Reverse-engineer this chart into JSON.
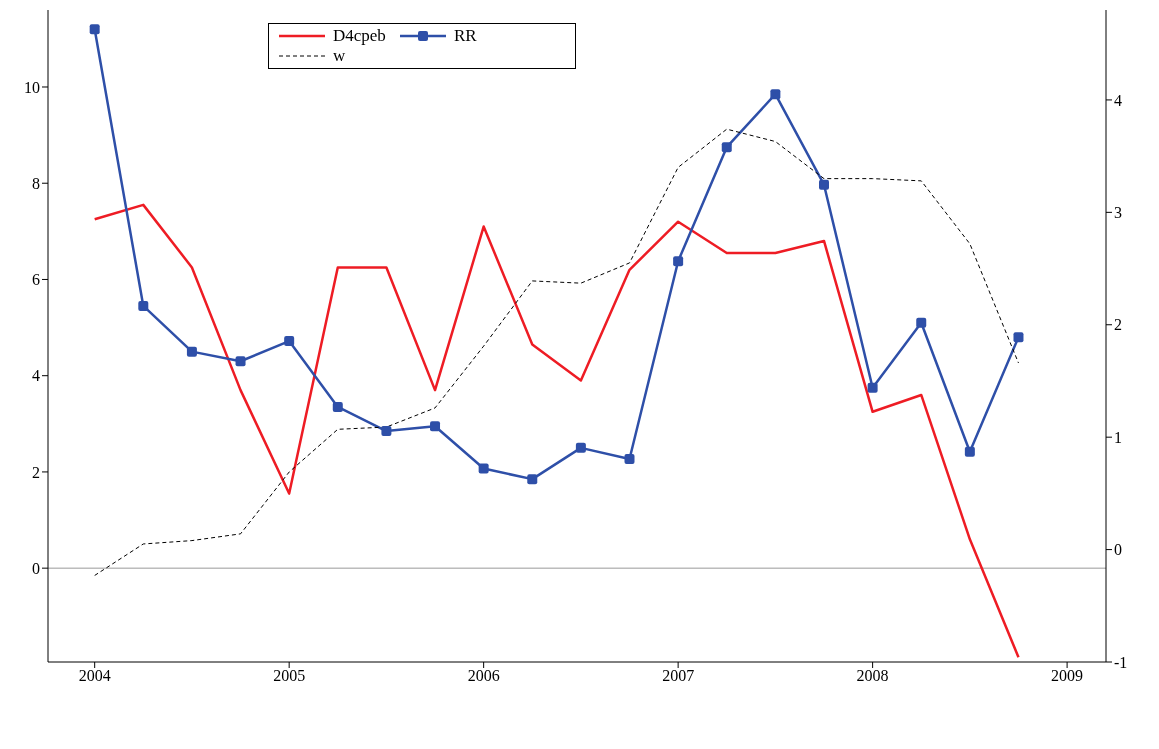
{
  "chart_data": {
    "type": "line",
    "x": [
      2004,
      2004.25,
      2004.5,
      2004.75,
      2005,
      2005.25,
      2005.5,
      2005.75,
      2006,
      2006.25,
      2006.5,
      2006.75,
      2007,
      2007.25,
      2007.5,
      2007.75,
      2008,
      2008.25,
      2008.5,
      2008.75
    ],
    "series": [
      {
        "name": "D4cpeb",
        "color": "#ee1c24",
        "marker": "none",
        "line_style": "solid",
        "values": [
          7.25,
          7.55,
          6.25,
          3.7,
          1.55,
          6.25,
          6.25,
          3.7,
          7.1,
          4.65,
          3.9,
          6.2,
          7.2,
          6.55,
          6.55,
          6.8,
          3.25,
          3.6,
          0.6,
          -1.85
        ]
      },
      {
        "name": "RR",
        "color": "#2e4fa8",
        "marker": "square",
        "line_style": "solid",
        "values": [
          11.2,
          5.45,
          4.5,
          4.3,
          4.72,
          3.35,
          2.85,
          2.95,
          2.07,
          1.85,
          2.5,
          2.27,
          6.38,
          8.75,
          9.85,
          7.97,
          3.75,
          5.1,
          2.42,
          4.8
        ]
      },
      {
        "name": "w",
        "color": "#000000",
        "marker": "none",
        "line_style": "dashed",
        "axis": "y2",
        "values": [
          -0.23,
          0.05,
          0.08,
          0.14,
          0.69,
          1.07,
          1.09,
          1.26,
          1.81,
          2.39,
          2.37,
          2.55,
          3.4,
          3.74,
          3.63,
          3.3,
          3.3,
          3.28,
          2.72,
          1.66
        ]
      }
    ],
    "xlim": [
      2003.76,
      2009.2
    ],
    "xticks": [
      2004,
      2005,
      2006,
      2007,
      2008,
      2009
    ],
    "ylim": [
      -1.95,
      11.6
    ],
    "yticks": [
      0,
      2,
      4,
      6,
      8,
      10
    ],
    "y2lim": [
      -1,
      4.8
    ],
    "y2ticks": [
      -1,
      0,
      1,
      2,
      3,
      4
    ],
    "ref_lines": [
      {
        "axis": "y",
        "value": 0,
        "color": "#999999"
      }
    ],
    "grid": false,
    "legend": "top left"
  }
}
